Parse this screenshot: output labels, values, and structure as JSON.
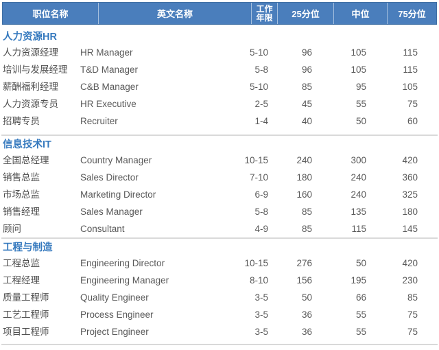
{
  "table": {
    "header_bg": "#4a7ebc",
    "header_text_color": "#ffffff",
    "section_title_color": "#3579be",
    "body_text_color": "#595959",
    "divider_color": "#d9d9d9",
    "columns": [
      "职位名称",
      "英文名称",
      "工作年限",
      "25分位",
      "中位",
      "75分位"
    ],
    "sections": [
      {
        "title": "人力资源HR",
        "rows": [
          {
            "position": "人力资源经理",
            "english": "HR Manager",
            "years": "5-10",
            "p25": "96",
            "median": "105",
            "p75": "115"
          },
          {
            "position": "培训与发展经理",
            "english": "T&D Manager",
            "years": "5-8",
            "p25": "96",
            "median": "105",
            "p75": "115"
          },
          {
            "position": "薪酬福利经理",
            "english": "C&B Manager",
            "years": "5-10",
            "p25": "85",
            "median": "95",
            "p75": "105"
          },
          {
            "position": "人力资源专员",
            "english": "HR Executive",
            "years": "2-5",
            "p25": "45",
            "median": "55",
            "p75": "75"
          },
          {
            "position": "招聘专员",
            "english": "Recruiter",
            "years": "1-4",
            "p25": "40",
            "median": "50",
            "p75": "60"
          }
        ]
      },
      {
        "title": "信息技术IT",
        "rows": [
          {
            "position": "全国总经理",
            "english": "Country Manager",
            "years": "10-15",
            "p25": "240",
            "median": "300",
            "p75": "420"
          },
          {
            "position": "销售总监",
            "english": "Sales Director",
            "years": "7-10",
            "p25": "180",
            "median": "240",
            "p75": "360"
          },
          {
            "position": "市场总监",
            "english": "Marketing Director",
            "years": "6-9",
            "p25": "160",
            "median": "240",
            "p75": "325"
          },
          {
            "position": "销售经理",
            "english": "Sales Manager",
            "years": "5-8",
            "p25": "85",
            "median": "135",
            "p75": "180"
          },
          {
            "position": "顾问",
            "english": "Consultant",
            "years": "4-9",
            "p25": "85",
            "median": "115",
            "p75": "145"
          }
        ]
      },
      {
        "title": "工程与制造",
        "rows": [
          {
            "position": "工程总监",
            "english": "Engineering Director",
            "years": "10-15",
            "p25": "276",
            "median": "50",
            "p75": "420"
          },
          {
            "position": "工程经理",
            "english": "Engineering Manager",
            "years": "8-10",
            "p25": "156",
            "median": "195",
            "p75": "230"
          },
          {
            "position": "质量工程师",
            "english": "Quality Engineer",
            "years": "3-5",
            "p25": "50",
            "median": "66",
            "p75": "85"
          },
          {
            "position": "工艺工程师",
            "english": "Process Engineer",
            "years": "3-5",
            "p25": "36",
            "median": "55",
            "p75": "75"
          },
          {
            "position": "项目工程师",
            "english": "Project Engineer",
            "years": "3-5",
            "p25": "36",
            "median": "55",
            "p75": "75"
          }
        ]
      }
    ]
  }
}
